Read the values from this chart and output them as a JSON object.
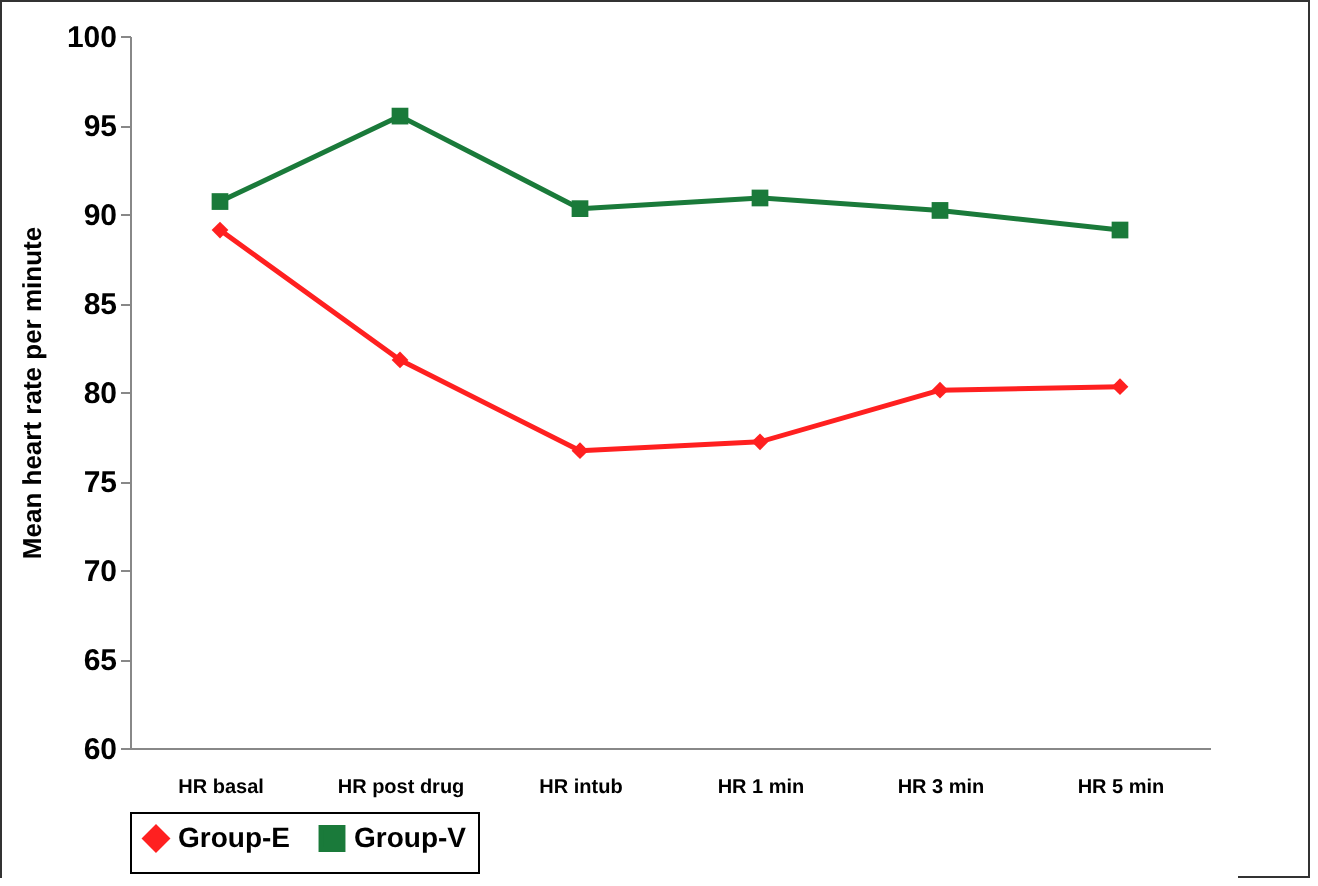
{
  "chart_data": {
    "type": "line",
    "ylabel": "Mean heart rate per minute",
    "categories": [
      "HR basal",
      "HR post drug",
      "HR intub",
      "HR 1 min",
      "HR 3 min",
      "HR 5 min"
    ],
    "series": [
      {
        "name": "Group-E",
        "color": "#ff2020",
        "marker": "diamond",
        "values": [
          89.1,
          81.8,
          76.7,
          77.2,
          80.1,
          80.3
        ]
      },
      {
        "name": "Group-V",
        "color": "#1a7a3a",
        "marker": "square",
        "values": [
          90.7,
          95.5,
          90.3,
          90.9,
          90.2,
          89.1
        ]
      }
    ],
    "ylim": [
      60,
      100
    ],
    "yticks": [
      60,
      65,
      70,
      75,
      80,
      85,
      90,
      95,
      100
    ],
    "grid": false,
    "legend": "bottom"
  }
}
